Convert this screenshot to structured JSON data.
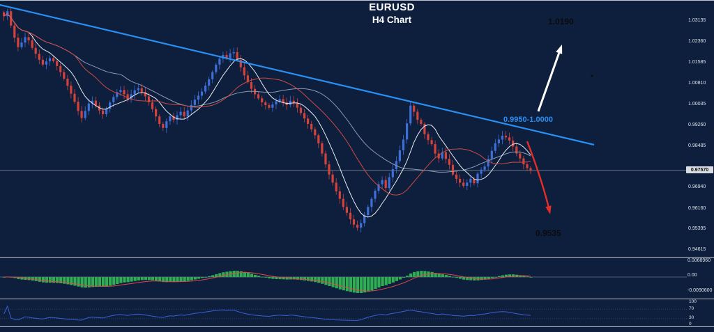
{
  "title": {
    "symbol": "EURUSD",
    "timeframe": "H4 Chart"
  },
  "annotations": {
    "upper_target": "1.0190",
    "lower_target": "0.9535",
    "zone_label": "0.9950-1.0000"
  },
  "price_axis": {
    "labels": [
      "1.03135",
      "1.02360",
      "1.01585",
      "1.00810",
      "1.00035",
      "0.99260",
      "0.98485",
      "0.96940",
      "0.96160",
      "0.95395",
      "0.94615"
    ],
    "current_price": "0.97570"
  },
  "colors": {
    "bg": "#0d1f3d",
    "bull": "#3e6fd8",
    "bear": "#d4423a",
    "ma-fast": "#e9edf2",
    "ma-slow": "#d04a42",
    "ma-mid": "#8b9ab5",
    "trendline": "#2a8ff2",
    "arrow-up": "#ffffff",
    "arrow-down": "#e62e26",
    "hist-green": "#2fae54",
    "rsi-blue": "#3d5fd6",
    "price-line": "#c8cdd4"
  },
  "chart_data": {
    "type": "candlestick",
    "symbol": "EURUSD",
    "timeframe": "H4",
    "bars": 150,
    "price_range": [
      0.946,
      1.038
    ],
    "current_price": 0.9757,
    "closes": [
      1.033,
      1.0348,
      1.0295,
      1.025,
      1.0215,
      1.0232,
      1.0252,
      1.024,
      1.0212,
      1.019,
      1.0168,
      1.015,
      1.0162,
      1.0174,
      1.0163,
      1.0145,
      1.0122,
      1.0098,
      1.0072,
      1.0042,
      1.0012,
      0.9978,
      0.9952,
      0.9978,
      1.0006,
      1.0016,
      0.9998,
      0.998,
      0.9966,
      0.9986,
      1.001,
      1.003,
      1.0048,
      1.0056,
      1.004,
      1.0022,
      1.004,
      1.0055,
      1.0062,
      1.0048,
      1.0032,
      1.001,
      0.9985,
      0.9958,
      0.993,
      0.9915,
      0.994,
      0.9958,
      0.9945,
      0.9962,
      0.9975,
      0.9958,
      0.998,
      1.0,
      1.002,
      1.0035,
      1.005,
      1.0072,
      1.0096,
      1.0122,
      1.015,
      1.0172,
      1.0186,
      1.0175,
      1.0192,
      1.0196,
      1.0168,
      1.014,
      1.011,
      1.0085,
      1.006,
      1.004,
      1.0025,
      1.001,
      1.0,
      0.999,
      1.0002,
      1.0014,
      1.0022,
      1.001,
      1.0,
      1.0016,
      1.0008,
      0.999,
      0.997,
      0.995,
      0.993,
      0.991,
      0.9888,
      0.9858,
      0.982,
      0.978,
      0.9742,
      0.9712,
      0.968,
      0.9652,
      0.9622,
      0.96,
      0.9576,
      0.9556,
      0.9545,
      0.9562,
      0.9592,
      0.9622,
      0.9652,
      0.9682,
      0.9706,
      0.9722,
      0.9692,
      0.9732,
      0.9762,
      0.9792,
      0.9832,
      0.9872,
      0.9932,
      0.9998,
      0.9975,
      0.9945,
      0.993,
      0.9892,
      0.987,
      0.9855,
      0.982,
      0.9802,
      0.9825,
      0.98,
      0.9778,
      0.9742,
      0.9726,
      0.9712,
      0.97,
      0.9712,
      0.9726,
      0.971,
      0.9745,
      0.976,
      0.9772,
      0.98,
      0.983,
      0.9858,
      0.9872,
      0.9886,
      0.988,
      0.9868,
      0.9846,
      0.982,
      0.9802,
      0.978,
      0.9766,
      0.9757
    ],
    "trendline": {
      "direction": "descending",
      "start_price": 1.0365,
      "end_price": 0.9855,
      "label": "0.9950-1.0000"
    },
    "scenarios": {
      "bullish_target": 1.019,
      "bearish_target": 0.9535
    },
    "indicators": {
      "macd": {
        "axis_labels": [
          "0.0068960",
          "0.00",
          "-0.0090600"
        ]
      },
      "rsi": {
        "axis_labels": [
          "100",
          "70",
          "30",
          "0"
        ]
      }
    }
  }
}
